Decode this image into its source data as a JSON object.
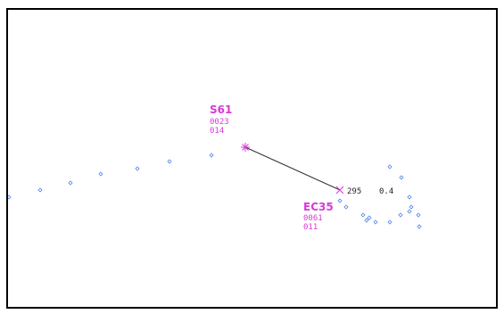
{
  "colors": {
    "track": "#d63ad6",
    "history": "#4a84e6",
    "vector_line": "#333333",
    "readout": "#222222",
    "frame": "#000000"
  },
  "targets": [
    {
      "callsign": "S61",
      "line1": "0023",
      "line2": "014",
      "symbol": "asterisk-icon"
    },
    {
      "callsign": "EC35",
      "line1": "0061",
      "line2": "011",
      "symbol": "cross-icon"
    }
  ],
  "range_bearing": {
    "bearing": "295",
    "range": "0.4"
  }
}
